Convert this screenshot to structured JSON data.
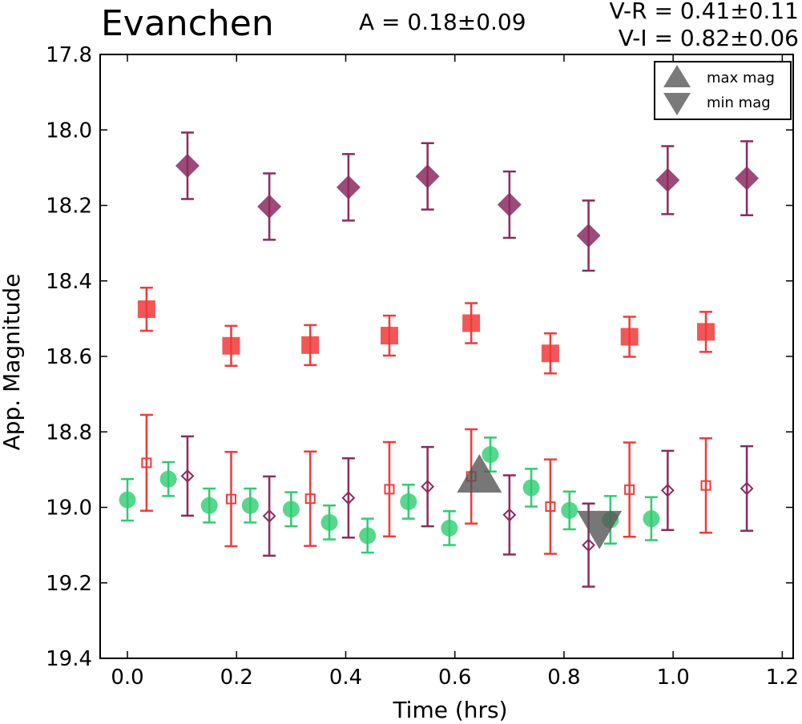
{
  "chart_data": {
    "type": "scatter",
    "title": "Evanchen",
    "header": {
      "amplitude": "A  = 0.18±0.09",
      "v_r": "V-R = 0.41±0.11",
      "v_i": "V-I  = 0.82±0.06"
    },
    "xlabel": "Time (hrs)",
    "ylabel": "App. Magnitude",
    "xlim": [
      -0.05,
      1.22
    ],
    "ylim": [
      19.4,
      17.8
    ],
    "y_inverted": true,
    "xticks": [
      "0.0",
      "0.2",
      "0.4",
      "0.6",
      "0.8",
      "1.0",
      "1.2"
    ],
    "yticks": [
      "17.8",
      "18.0",
      "18.2",
      "18.4",
      "18.6",
      "18.8",
      "19.0",
      "19.2",
      "19.4"
    ],
    "grid": false,
    "legend": {
      "placement": "top-right",
      "entries": [
        {
          "label": "max mag",
          "marker": "triangle-up",
          "color": "#7a7a7a"
        },
        {
          "label": "min mag",
          "marker": "triangle-down",
          "color": "#7a7a7a"
        }
      ]
    },
    "series": [
      {
        "marker": "diamond-filled",
        "color": "#8b2a5f",
        "points": [
          {
            "x": 0.11,
            "y": 18.095,
            "err": 0.088
          },
          {
            "x": 0.26,
            "y": 18.203,
            "err": 0.088
          },
          {
            "x": 0.405,
            "y": 18.152,
            "err": 0.088
          },
          {
            "x": 0.55,
            "y": 18.123,
            "err": 0.088
          },
          {
            "x": 0.7,
            "y": 18.198,
            "err": 0.088
          },
          {
            "x": 0.845,
            "y": 18.28,
            "err": 0.093
          },
          {
            "x": 0.99,
            "y": 18.133,
            "err": 0.09
          },
          {
            "x": 1.135,
            "y": 18.128,
            "err": 0.098
          }
        ]
      },
      {
        "marker": "square-filled",
        "color": "#f03a3a",
        "points": [
          {
            "x": 0.035,
            "y": 18.475,
            "err": 0.057
          },
          {
            "x": 0.19,
            "y": 18.572,
            "err": 0.053
          },
          {
            "x": 0.335,
            "y": 18.57,
            "err": 0.053
          },
          {
            "x": 0.48,
            "y": 18.545,
            "err": 0.053
          },
          {
            "x": 0.63,
            "y": 18.512,
            "err": 0.053
          },
          {
            "x": 0.775,
            "y": 18.592,
            "err": 0.053
          },
          {
            "x": 0.92,
            "y": 18.548,
            "err": 0.053
          },
          {
            "x": 1.06,
            "y": 18.535,
            "err": 0.053
          }
        ]
      },
      {
        "marker": "circle-filled",
        "color": "#2ecc71",
        "points": [
          {
            "x": 0.0,
            "y": 18.98,
            "err": 0.055
          },
          {
            "x": 0.075,
            "y": 18.925,
            "err": 0.045
          },
          {
            "x": 0.15,
            "y": 18.995,
            "err": 0.045
          },
          {
            "x": 0.225,
            "y": 18.995,
            "err": 0.045
          },
          {
            "x": 0.3,
            "y": 19.005,
            "err": 0.045
          },
          {
            "x": 0.37,
            "y": 19.04,
            "err": 0.045
          },
          {
            "x": 0.44,
            "y": 19.075,
            "err": 0.045
          },
          {
            "x": 0.515,
            "y": 18.985,
            "err": 0.045
          },
          {
            "x": 0.59,
            "y": 19.055,
            "err": 0.045
          },
          {
            "x": 0.665,
            "y": 18.86,
            "err": 0.045
          },
          {
            "x": 0.74,
            "y": 18.948,
            "err": 0.05
          },
          {
            "x": 0.81,
            "y": 19.008,
            "err": 0.05
          },
          {
            "x": 0.885,
            "y": 19.033,
            "err": 0.063
          },
          {
            "x": 0.96,
            "y": 19.03,
            "err": 0.057
          }
        ]
      },
      {
        "marker": "square-open",
        "color": "#f03a3a",
        "points": [
          {
            "x": 0.035,
            "y": 18.882,
            "err": 0.127
          },
          {
            "x": 0.19,
            "y": 18.978,
            "err": 0.125
          },
          {
            "x": 0.335,
            "y": 18.977,
            "err": 0.125
          },
          {
            "x": 0.48,
            "y": 18.952,
            "err": 0.125
          },
          {
            "x": 0.63,
            "y": 18.918,
            "err": 0.125
          },
          {
            "x": 0.775,
            "y": 18.998,
            "err": 0.125
          },
          {
            "x": 0.92,
            "y": 18.953,
            "err": 0.125
          },
          {
            "x": 1.06,
            "y": 18.942,
            "err": 0.125
          }
        ]
      },
      {
        "marker": "diamond-open",
        "color": "#8b2a5f",
        "points": [
          {
            "x": 0.11,
            "y": 18.917,
            "err": 0.105
          },
          {
            "x": 0.26,
            "y": 19.023,
            "err": 0.105
          },
          {
            "x": 0.405,
            "y": 18.975,
            "err": 0.105
          },
          {
            "x": 0.55,
            "y": 18.945,
            "err": 0.105
          },
          {
            "x": 0.7,
            "y": 19.02,
            "err": 0.105
          },
          {
            "x": 0.845,
            "y": 19.1,
            "err": 0.11
          },
          {
            "x": 0.99,
            "y": 18.955,
            "err": 0.105
          },
          {
            "x": 1.135,
            "y": 18.95,
            "err": 0.112
          }
        ]
      }
    ],
    "extrema": [
      {
        "name": "max mag",
        "x": 0.645,
        "y": 18.92,
        "marker": "triangle-up",
        "color": "#555555"
      },
      {
        "name": "min mag",
        "x": 0.865,
        "y": 19.05,
        "marker": "triangle-down",
        "color": "#555555"
      }
    ]
  }
}
